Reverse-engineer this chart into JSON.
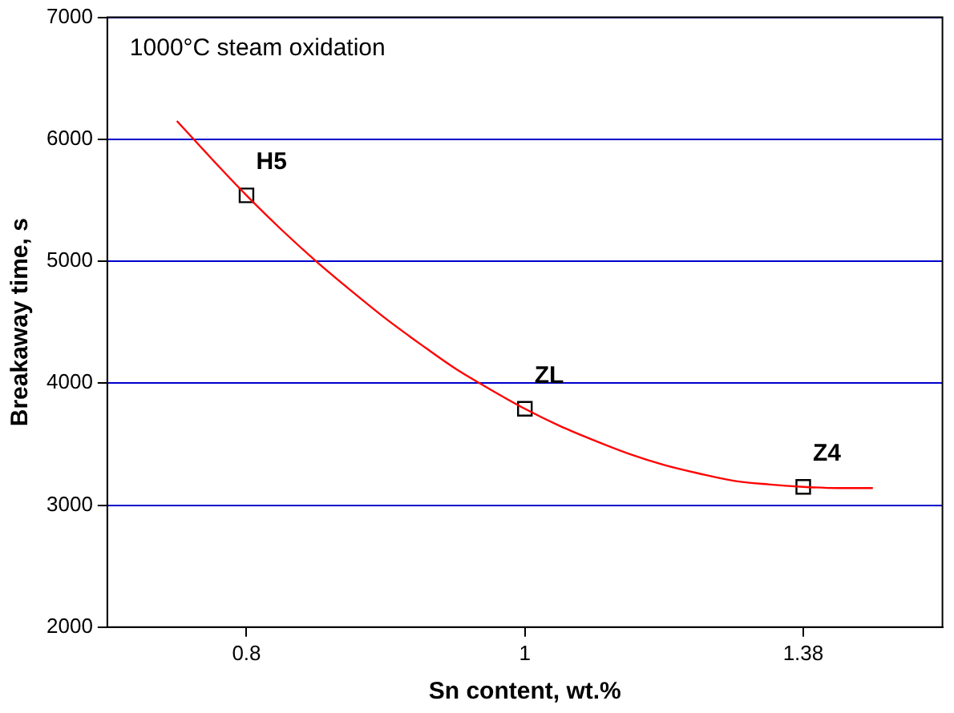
{
  "chart_data": {
    "type": "scatter",
    "xlabel": "Sn content, wt.%",
    "ylabel": "Breakaway time, s",
    "categories": [
      null,
      null,
      null,
      null,
      "0.8",
      null,
      null,
      null,
      null,
      null,
      null,
      null,
      "1",
      null,
      null,
      null,
      null,
      null,
      null,
      null,
      "1.38",
      null,
      null,
      null,
      null
    ],
    "series": [
      {
        "type": "line",
        "color": "#ff0000",
        "marker": "none",
        "values": [
          null,
          null,
          6150,
          5840,
          5540,
          5260,
          5000,
          4760,
          4530,
          4320,
          4120,
          3950,
          3790,
          3650,
          3530,
          3420,
          3330,
          3260,
          3200,
          3170,
          3150,
          3140,
          3140,
          null,
          null
        ]
      },
      {
        "type": "scatter",
        "color": "#000000",
        "marker": "square",
        "x": [
          "0.8",
          "1",
          "1.38"
        ],
        "values": [
          5540,
          3790,
          3150
        ]
      }
    ],
    "ylim": [
      2000,
      7000
    ],
    "yticks": [
      2000,
      3000,
      4000,
      5000,
      6000,
      7000
    ],
    "grid": "y",
    "legend": false,
    "annotations": [
      "1000°C steam oxidation",
      {
        "text": "H5",
        "x": "0.8",
        "y": 5540
      },
      {
        "text": "ZL",
        "x": "1",
        "y": 3790
      },
      {
        "text": "Z4",
        "x": "1.38",
        "y": 3150
      }
    ]
  }
}
